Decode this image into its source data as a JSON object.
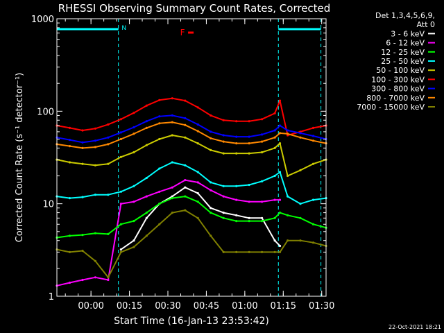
{
  "chart_data": {
    "type": "line",
    "title": "RHESSI Observing Summary Count Rates, Corrected",
    "xlabel": "Start Time (16-Jan-13 23:53:42)",
    "ylabel": "Corrected Count Rate (s⁻¹ detector⁻¹)",
    "y_scale": "log",
    "ylim": [
      1,
      1000
    ],
    "xlim_minutes_after_start": [
      -7,
      98
    ],
    "x_ticks": [
      {
        "label": "00:00",
        "t": 6.3
      },
      {
        "label": "00:15",
        "t": 21.3
      },
      {
        "label": "00:30",
        "t": 36.3
      },
      {
        "label": "00:45",
        "t": 51.3
      },
      {
        "label": "01:00",
        "t": 66.3
      },
      {
        "label": "01:15",
        "t": 81.3
      },
      {
        "label": "01:30",
        "t": 96.3
      }
    ],
    "y_ticks": [
      {
        "label": "1",
        "v": 1
      },
      {
        "label": "10",
        "v": 10
      },
      {
        "label": "100",
        "v": 100
      },
      {
        "label": "1000",
        "v": 1000
      }
    ],
    "legend": {
      "placement": "right",
      "header": [
        "Det 1,3,4,5,6,9,",
        "Att 0"
      ]
    },
    "annotations": [
      {
        "text": "N",
        "t": 17.0,
        "color": "#00ffff"
      },
      {
        "text": "F",
        "t": 42.0,
        "color": "#ff0000"
      }
    ],
    "night_markers_t": [
      -7.0,
      17.0,
      79.4,
      96.0
    ],
    "x": [
      -7,
      -2,
      3,
      8,
      13,
      18,
      23,
      28,
      33,
      38,
      43,
      48,
      53,
      58,
      63,
      68,
      73,
      78,
      80,
      83,
      88,
      93,
      98
    ],
    "series": [
      {
        "name": "3 - 6 keV",
        "color": "#ffffff",
        "values": [
          null,
          null,
          null,
          null,
          null,
          3.2,
          4.0,
          7.0,
          10.0,
          12.0,
          15.0,
          13.0,
          9.0,
          8.0,
          7.5,
          7.0,
          7.0,
          4.0,
          3.5,
          null,
          null,
          null,
          null
        ]
      },
      {
        "name": "6 - 12 keV",
        "color": "#ff00ff",
        "values": [
          1.3,
          1.4,
          1.5,
          1.6,
          1.5,
          10.0,
          10.5,
          12.0,
          13.5,
          15.0,
          18.0,
          17.0,
          14.0,
          12.0,
          11.0,
          10.5,
          10.5,
          11.0,
          11.0,
          null,
          null,
          null,
          null
        ]
      },
      {
        "name": "12 - 25 keV",
        "color": "#00ff00",
        "values": [
          4.3,
          4.5,
          4.6,
          4.8,
          4.7,
          6.0,
          6.5,
          8.0,
          10.0,
          11.5,
          12.0,
          10.5,
          8.0,
          7.0,
          6.5,
          6.5,
          6.5,
          7.0,
          8.0,
          7.5,
          7.0,
          6.0,
          5.5
        ]
      },
      {
        "name": "25 - 50 keV",
        "color": "#00ffff",
        "values": [
          12.0,
          11.5,
          11.8,
          12.5,
          12.5,
          13.5,
          15.5,
          19.0,
          24.0,
          28.0,
          26.0,
          22.0,
          17.0,
          15.5,
          15.5,
          16.0,
          17.5,
          20.0,
          22.0,
          12.0,
          10.0,
          11.0,
          11.5
        ]
      },
      {
        "name": "50 - 100 keV",
        "color": "#cccc00",
        "values": [
          30.0,
          28.0,
          27.0,
          26.0,
          27.0,
          32.0,
          36.0,
          43.0,
          50.0,
          55.0,
          52.0,
          45.0,
          38.0,
          35.0,
          35.0,
          35.0,
          36.0,
          40.0,
          45.0,
          20.0,
          23.0,
          27.0,
          30.0
        ]
      },
      {
        "name": "100 - 300 keV",
        "color": "#ff0000",
        "values": [
          70.0,
          66.0,
          62.0,
          65.0,
          72.0,
          82.0,
          96.0,
          115.0,
          132.0,
          138.0,
          130.0,
          110.0,
          90.0,
          80.0,
          78.0,
          78.0,
          82.0,
          95.0,
          130.0,
          55.0,
          60.0,
          66.0,
          70.0
        ]
      },
      {
        "name": "300 - 800 keV",
        "color": "#0000ff",
        "values": [
          52.0,
          49.0,
          46.0,
          48.0,
          52.0,
          59.0,
          67.0,
          78.0,
          88.0,
          90.0,
          84.0,
          72.0,
          60.0,
          55.0,
          53.0,
          53.0,
          56.0,
          62.0,
          70.0,
          62.0,
          58.0,
          54.0,
          50.0
        ]
      },
      {
        "name": "800 - 7000 keV",
        "color": "#ff8800",
        "values": [
          44.0,
          42.0,
          40.0,
          41.0,
          44.0,
          50.0,
          57.0,
          66.0,
          74.0,
          76.0,
          71.0,
          61.0,
          51.0,
          47.0,
          45.0,
          45.0,
          47.0,
          52.0,
          58.0,
          57.0,
          52.0,
          48.0,
          45.0
        ]
      },
      {
        "name": "7000 - 15000 keV",
        "color": "#808000",
        "values": [
          3.2,
          3.0,
          3.1,
          2.4,
          1.6,
          3.0,
          3.4,
          4.5,
          6.0,
          8.0,
          8.5,
          7.0,
          4.5,
          3.0,
          3.0,
          3.0,
          3.0,
          3.0,
          3.0,
          4.0,
          4.0,
          3.8,
          3.5
        ]
      }
    ]
  },
  "footer": {
    "timestamp": "22-Oct-2021 18:21"
  }
}
